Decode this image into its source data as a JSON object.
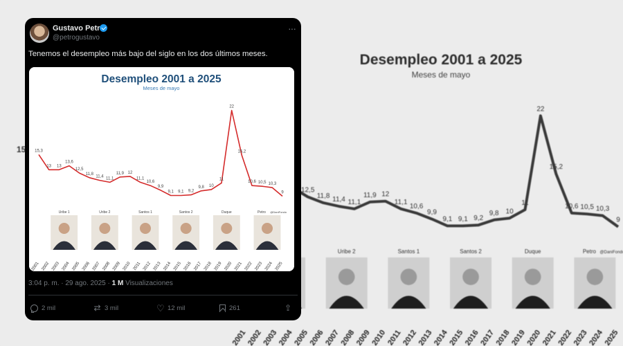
{
  "tweet": {
    "author_name": "Gustavo Petro",
    "handle": "@petrogustavo",
    "text": "Tenemos el desempleo más bajo del siglo en los dos últimos meses.",
    "time": "3:04 p. m. · 29 ago. 2025 · ",
    "views_count": "1 M",
    "views_label": "Visualizaciones",
    "replies": "2 mil",
    "reposts": "3 mil",
    "likes": "12 mil",
    "bookmarks": "261",
    "icons": [
      "verified-badge-icon",
      "more-icon",
      "reply-icon",
      "repost-icon",
      "like-icon",
      "bookmark-icon",
      "share-icon"
    ]
  },
  "chart_data": {
    "type": "line",
    "title": "Desempleo 2001 a 2025",
    "subtitle": "Meses de mayo",
    "x": [
      "2001",
      "2002",
      "2003",
      "2004",
      "2005",
      "2006",
      "2007",
      "2008",
      "2009",
      "2010",
      "2011",
      "2012",
      "2013",
      "2014",
      "2015",
      "2016",
      "2017",
      "2018",
      "2019",
      "2020",
      "2021",
      "2022",
      "2023",
      "2024",
      "2025"
    ],
    "values": [
      15.3,
      13,
      13,
      13.6,
      12.5,
      11.8,
      11.4,
      11.1,
      11.9,
      12,
      11.1,
      10.6,
      9.9,
      9.1,
      9.1,
      9.2,
      9.8,
      10,
      11,
      22,
      15.2,
      10.6,
      10.5,
      10.3,
      9
    ],
    "value_labels": [
      "15,3",
      "13",
      "13",
      "13,6",
      "12,5",
      "11,8",
      "11,4",
      "11,1",
      "11,9",
      "12",
      "11,1",
      "10,6",
      "9,9",
      "9,1",
      "9,1",
      "9,2",
      "9,8",
      "10",
      "11",
      "22",
      "15,2",
      "10,6",
      "10,5",
      "10,3",
      "9"
    ],
    "ylim": [
      8,
      23
    ],
    "presidents": [
      {
        "label": "Uribe 1",
        "from": "2002",
        "to": "2005"
      },
      {
        "label": "Uribe 2",
        "from": "2006",
        "to": "2009"
      },
      {
        "label": "Santos 1",
        "from": "2010",
        "to": "2013"
      },
      {
        "label": "Santos 2",
        "from": "2014",
        "to": "2017"
      },
      {
        "label": "Duque",
        "from": "2018",
        "to": "2021"
      },
      {
        "label": "Petro",
        "from": "2022",
        "to": "2025"
      }
    ],
    "watermark": "@DaniFondo",
    "line_color": "#d42a2a"
  },
  "background_chart": {
    "partial_value": "15",
    "watermark": "@DaniFondo",
    "line_color": "#3a3a3a"
  }
}
